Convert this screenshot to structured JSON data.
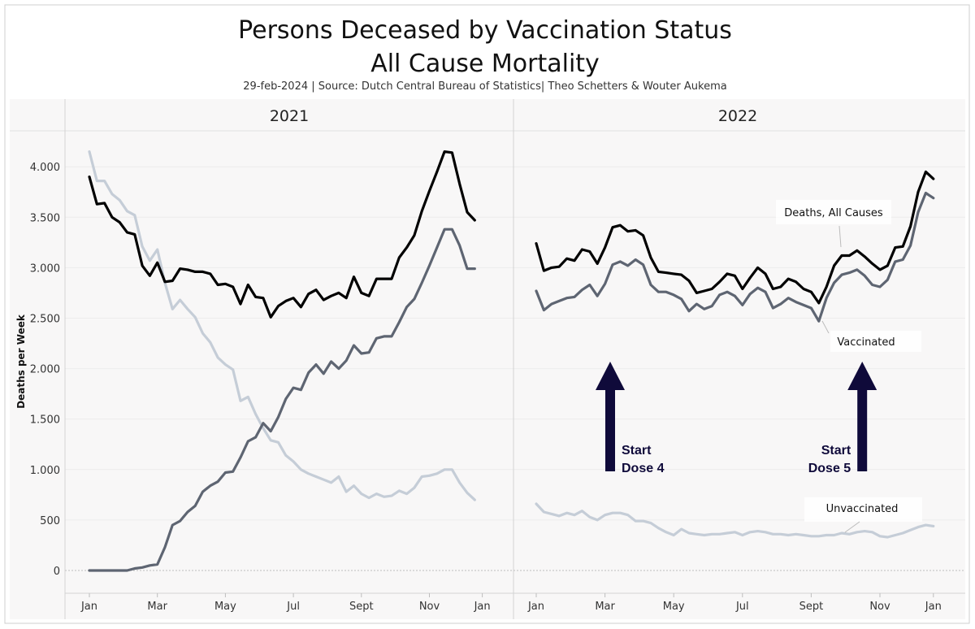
{
  "chart_data": {
    "type": "line",
    "title_line1": "Persons Deceased by Vaccination Status",
    "title_line2": "All Cause Mortality",
    "subtitle": "29-feb-2024 | Source: Dutch Central Bureau of Statistics| Theo Schetters & Wouter Aukema",
    "ylabel": "Deaths per Week",
    "ylim": [
      -300,
      4400
    ],
    "yticks": [
      0,
      500,
      1000,
      1500,
      2000,
      2500,
      3000,
      3500,
      4000
    ],
    "ytick_labels": [
      "0",
      "500",
      "1.000",
      "1.500",
      "2.000",
      "2.500",
      "3.000",
      "3.500",
      "4.000"
    ],
    "month_labels": [
      "Jan",
      "Mar",
      "May",
      "Jul",
      "Sept",
      "Nov",
      "Jan"
    ],
    "month_ticks_week": [
      1,
      10,
      19,
      28,
      37,
      46,
      53
    ],
    "grid": true,
    "colors": {
      "all": "#000000",
      "vaccinated": "#5e6572",
      "unvaccinated": "#c5cdd7",
      "arrow": "#0f0a3a",
      "panel_bg": "#f8f7f7"
    },
    "panels": [
      {
        "name": "2021",
        "series": [
          {
            "key": "all",
            "values": [
              3900,
              3630,
              3640,
              3500,
              3450,
              3350,
              3330,
              3020,
              2920,
              3050,
              2860,
              2870,
              2990,
              2980,
              2960,
              2960,
              2940,
              2830,
              2840,
              2810,
              2640,
              2830,
              2710,
              2700,
              2510,
              2620,
              2670,
              2700,
              2610,
              2740,
              2780,
              2680,
              2720,
              2750,
              2700,
              2910,
              2750,
              2720,
              2890,
              2890,
              2890,
              3100,
              3200,
              3320,
              3560,
              3760,
              3950,
              4150,
              4140,
              3830,
              3550,
              3470
            ]
          },
          {
            "key": "vaccinated",
            "values": [
              0,
              0,
              0,
              0,
              0,
              0,
              20,
              30,
              50,
              60,
              230,
              450,
              490,
              580,
              640,
              780,
              840,
              880,
              970,
              980,
              1120,
              1280,
              1320,
              1460,
              1380,
              1520,
              1700,
              1810,
              1790,
              1960,
              2040,
              1950,
              2070,
              2000,
              2080,
              2230,
              2150,
              2160,
              2300,
              2320,
              2320,
              2460,
              2610,
              2690,
              2850,
              3020,
              3200,
              3380,
              3380,
              3220,
              2990,
              2990
            ]
          },
          {
            "key": "unvaccinated",
            "values": [
              4150,
              3860,
              3860,
              3730,
              3670,
              3560,
              3520,
              3210,
              3070,
              3180,
              2850,
              2590,
              2680,
              2590,
              2510,
              2350,
              2260,
              2110,
              2040,
              1990,
              1680,
              1720,
              1550,
              1410,
              1290,
              1270,
              1140,
              1080,
              1000,
              960,
              930,
              900,
              870,
              930,
              780,
              840,
              760,
              720,
              760,
              730,
              740,
              790,
              760,
              820,
              930,
              940,
              960,
              1000,
              1000,
              870,
              770,
              700
            ]
          }
        ]
      },
      {
        "name": "2022",
        "series": [
          {
            "key": "all",
            "values": [
              3240,
              2970,
              3000,
              3010,
              3090,
              3070,
              3180,
              3160,
              3040,
              3200,
              3400,
              3420,
              3360,
              3370,
              3320,
              3100,
              2960,
              2950,
              2940,
              2930,
              2870,
              2750,
              2770,
              2790,
              2860,
              2940,
              2920,
              2790,
              2900,
              3000,
              2940,
              2790,
              2810,
              2890,
              2860,
              2790,
              2760,
              2650,
              2810,
              3020,
              3120,
              3120,
              3170,
              3110,
              3040,
              2980,
              3020,
              3200,
              3210,
              3410,
              3750,
              3950,
              3880
            ]
          },
          {
            "key": "vaccinated",
            "values": [
              2770,
              2580,
              2640,
              2670,
              2700,
              2710,
              2780,
              2830,
              2720,
              2840,
              3030,
              3060,
              3020,
              3080,
              3030,
              2830,
              2760,
              2760,
              2730,
              2690,
              2570,
              2640,
              2590,
              2620,
              2730,
              2760,
              2720,
              2630,
              2740,
              2800,
              2760,
              2600,
              2640,
              2700,
              2660,
              2630,
              2600,
              2470,
              2700,
              2850,
              2930,
              2950,
              2980,
              2920,
              2830,
              2810,
              2880,
              3060,
              3080,
              3220,
              3550,
              3740,
              3690
            ]
          },
          {
            "key": "unvaccinated",
            "values": [
              660,
              580,
              560,
              540,
              570,
              550,
              590,
              530,
              500,
              550,
              570,
              570,
              550,
              490,
              490,
              470,
              420,
              380,
              350,
              410,
              370,
              360,
              350,
              360,
              360,
              370,
              380,
              350,
              380,
              390,
              380,
              360,
              360,
              350,
              360,
              350,
              340,
              340,
              350,
              350,
              370,
              360,
              380,
              390,
              380,
              340,
              330,
              350,
              370,
              400,
              430,
              450,
              440
            ]
          }
        ]
      }
    ],
    "labels": {
      "all": "Deaths, All Causes",
      "vaccinated": "Vaccinated",
      "unvaccinated": "Unvaccinated"
    },
    "doses": [
      {
        "line1": "Start",
        "line2": "Dose 4",
        "week": 11
      },
      {
        "line1": "Start",
        "line2": "Dose 5",
        "week": 44
      }
    ]
  }
}
